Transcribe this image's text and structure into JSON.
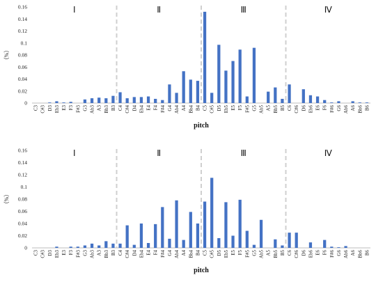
{
  "chart_data": [
    {
      "type": "bar",
      "xlabel": "pitch",
      "ylabel": "（%）",
      "ylim": [
        0,
        0.16
      ],
      "yticks": [
        "0",
        "0.02",
        "0.04",
        "0.06",
        "0.08",
        "0.1",
        "0.12",
        "0.14",
        "0.16"
      ],
      "color": "#4472C4",
      "divider_color": "#cfcfcf",
      "regions": [
        {
          "label": "Ⅰ",
          "start": "C3",
          "end": "B3"
        },
        {
          "label": "Ⅱ",
          "start": "C4",
          "end": "B4"
        },
        {
          "label": "Ⅲ",
          "start": "C5",
          "end": "B5"
        },
        {
          "label": "Ⅳ",
          "start": "C6",
          "end": "B6"
        }
      ],
      "categories": [
        "C3",
        "C#3",
        "D3",
        "Eb3",
        "E3",
        "F3",
        "F#3",
        "G3",
        "Ab3",
        "A3",
        "Bb3",
        "B3",
        "C4",
        "C#4",
        "D4",
        "Eb4",
        "E4",
        "F4",
        "F#4",
        "G4",
        "Ab4",
        "A4",
        "Bb4",
        "B4",
        "C5",
        "C#5",
        "D5",
        "Eb5",
        "E5",
        "F5",
        "F#5",
        "G5",
        "Ab5",
        "A5",
        "Bb5",
        "B5",
        "C6",
        "C#6",
        "D6",
        "Eb6",
        "E6",
        "F6",
        "F#6",
        "G6",
        "Ab6",
        "A6",
        "Bb6",
        "B6"
      ],
      "values": [
        0,
        0,
        0.001,
        0.003,
        0.001,
        0.002,
        0,
        0.006,
        0.008,
        0.009,
        0.008,
        0.012,
        0.018,
        0.008,
        0.01,
        0.01,
        0.011,
        0.007,
        0.005,
        0.031,
        0.017,
        0.053,
        0.039,
        0.037,
        0.152,
        0.017,
        0.097,
        0.054,
        0.07,
        0.089,
        0.011,
        0.092,
        0,
        0.019,
        0.026,
        0.007,
        0.031,
        0,
        0.023,
        0.013,
        0.011,
        0.005,
        0.001,
        0.003,
        0,
        0.003,
        0.001,
        0.001
      ]
    },
    {
      "type": "bar",
      "xlabel": "pitch",
      "ylabel": "（%）",
      "ylim": [
        0,
        0.16
      ],
      "yticks": [
        "0",
        "0.02",
        "0.04",
        "0.06",
        "0.08",
        "0.1",
        "0.12",
        "0.14",
        "0.16"
      ],
      "color": "#4472C4",
      "divider_color": "#cfcfcf",
      "regions": [
        {
          "label": "Ⅰ",
          "start": "C3",
          "end": "B3"
        },
        {
          "label": "Ⅱ",
          "start": "C4",
          "end": "B4"
        },
        {
          "label": "Ⅲ",
          "start": "C5",
          "end": "B5"
        },
        {
          "label": "Ⅳ",
          "start": "C6",
          "end": "B6"
        }
      ],
      "categories": [
        "C3",
        "C#3",
        "D3",
        "Eb3",
        "E3",
        "F3",
        "F#3",
        "G3",
        "Ab3",
        "A3",
        "Bb3",
        "B3",
        "C4",
        "C#4",
        "D4",
        "Eb4",
        "E4",
        "F4",
        "F#4",
        "G4",
        "Ab4",
        "A4",
        "Bb4",
        "B4",
        "C5",
        "C#5",
        "D5",
        "Eb5",
        "E5",
        "F5",
        "F#5",
        "G5",
        "Ab5",
        "A5",
        "Bb5",
        "B5",
        "C6",
        "C#6",
        "D6",
        "Eb6",
        "E6",
        "F6",
        "F#6",
        "G6",
        "Ab6",
        "A6",
        "Bb6",
        "B6"
      ],
      "values": [
        0,
        0,
        0,
        0.002,
        0,
        0.002,
        0.002,
        0.004,
        0.007,
        0.004,
        0.011,
        0.007,
        0.007,
        0.037,
        0.005,
        0.04,
        0.008,
        0.039,
        0.067,
        0.015,
        0.078,
        0.013,
        0.059,
        0.04,
        0.076,
        0.115,
        0.016,
        0.075,
        0.02,
        0.079,
        0.028,
        0.005,
        0.046,
        0,
        0.014,
        0.004,
        0.025,
        0.025,
        0,
        0.009,
        0,
        0.013,
        0.002,
        0.001,
        0.003,
        0,
        0,
        0
      ]
    }
  ]
}
